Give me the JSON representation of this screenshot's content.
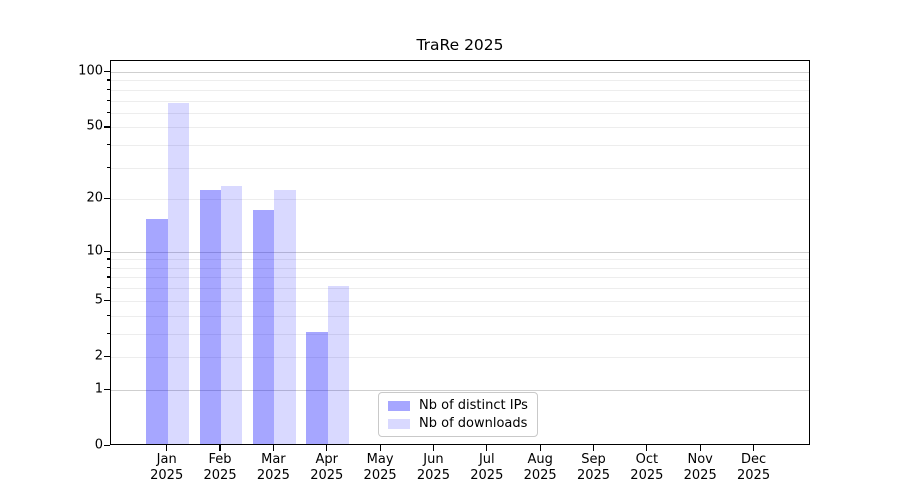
{
  "figure": {
    "background": "#ffffff"
  },
  "chart_data": {
    "type": "bar",
    "title": "TraRe 2025",
    "categories": [
      "Jan",
      "Feb",
      "Mar",
      "Apr",
      "May",
      "Jun",
      "Jul",
      "Aug",
      "Sep",
      "Oct",
      "Nov",
      "Dec"
    ],
    "category_year": "2025",
    "series": [
      {
        "name": "Nb of distinct IPs",
        "color": "#0000ff59",
        "values": [
          15,
          22,
          17,
          3,
          0,
          0,
          0,
          0,
          0,
          0,
          0,
          0
        ]
      },
      {
        "name": "Nb of downloads",
        "color": "#0000ff26",
        "values": [
          66,
          23,
          22,
          6,
          0,
          0,
          0,
          0,
          0,
          0,
          0,
          0
        ]
      }
    ],
    "yscale": "log10(value+1)",
    "ylim": [
      0,
      114.7
    ],
    "yticks": [
      0,
      1,
      2,
      5,
      10,
      20,
      50,
      100
    ],
    "grid": {
      "major_values": [
        1,
        10,
        100
      ],
      "minor_values": [
        2,
        3,
        4,
        5,
        6,
        7,
        8,
        9,
        20,
        30,
        40,
        50,
        60,
        70,
        80,
        90
      ],
      "major_color": "#cfcfcf",
      "minor_color": "#ededed"
    },
    "legend": {
      "position": "lower center",
      "entries": [
        "Nb of distinct IPs",
        "Nb of downloads"
      ]
    },
    "xlabel": "",
    "ylabel": "",
    "axis_color": "#000000"
  }
}
